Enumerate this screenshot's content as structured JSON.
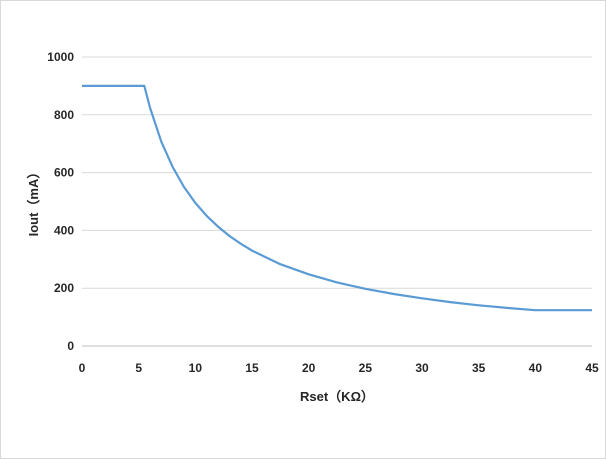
{
  "chart_data": {
    "type": "line",
    "title": "",
    "xlabel": "Rset（KΩ）",
    "ylabel": "Iout（mA）",
    "xlim": [
      0,
      45
    ],
    "ylim": [
      0,
      1000
    ],
    "x_ticks": [
      "0",
      "5",
      "10",
      "15",
      "20",
      "25",
      "30",
      "35",
      "40",
      "45"
    ],
    "y_ticks": [
      "0",
      "200",
      "400",
      "600",
      "800",
      "1000"
    ],
    "grid": "horizontal",
    "legend": "none",
    "line_color": "#5b9bd5",
    "series": [
      {
        "x": [
          0,
          5.5,
          6,
          7,
          8,
          9,
          10,
          11,
          12,
          13,
          14,
          15,
          17.5,
          20,
          22.5,
          25,
          27.5,
          30,
          32.5,
          35,
          37.5,
          40,
          42.5,
          45
        ],
        "values": [
          900,
          900,
          825,
          707,
          619,
          550,
          495,
          450,
          413,
          381,
          354,
          330,
          283,
          248,
          220,
          198,
          180,
          165,
          152,
          141,
          132,
          124,
          124,
          124
        ]
      }
    ]
  }
}
